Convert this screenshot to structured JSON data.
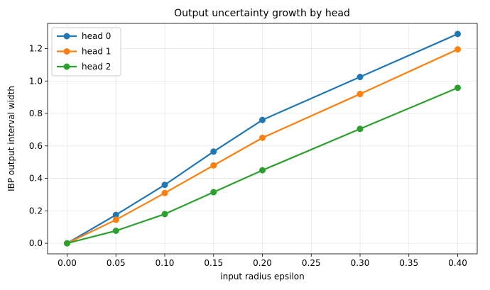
{
  "chart_data": {
    "type": "line",
    "title": "Output uncertainty growth by head",
    "xlabel": "input radius epsilon",
    "ylabel": "IBP output interval width",
    "x": [
      0.0,
      0.05,
      0.1,
      0.15,
      0.2,
      0.3,
      0.4
    ],
    "xlim": [
      -0.02,
      0.42
    ],
    "ylim": [
      -0.065,
      1.355
    ],
    "xticks": [
      0.0,
      0.05,
      0.1,
      0.15,
      0.2,
      0.25,
      0.3,
      0.35,
      0.4
    ],
    "xtick_labels": [
      "0.00",
      "0.05",
      "0.10",
      "0.15",
      "0.20",
      "0.25",
      "0.30",
      "0.35",
      "0.40"
    ],
    "yticks": [
      0.0,
      0.2,
      0.4,
      0.6,
      0.8,
      1.0,
      1.2
    ],
    "ytick_labels": [
      "0.0",
      "0.2",
      "0.4",
      "0.6",
      "0.8",
      "1.0",
      "1.2"
    ],
    "grid": true,
    "legend_position": "top-left",
    "series": [
      {
        "name": "head 0",
        "color": "#1f77b4",
        "values": [
          0.0,
          0.175,
          0.36,
          0.565,
          0.76,
          1.025,
          1.29
        ]
      },
      {
        "name": "head 1",
        "color": "#ff7f0e",
        "values": [
          0.0,
          0.145,
          0.31,
          0.48,
          0.65,
          0.92,
          1.195
        ]
      },
      {
        "name": "head 2",
        "color": "#2ca02c",
        "values": [
          0.0,
          0.077,
          0.18,
          0.315,
          0.45,
          0.705,
          0.958
        ]
      }
    ]
  }
}
